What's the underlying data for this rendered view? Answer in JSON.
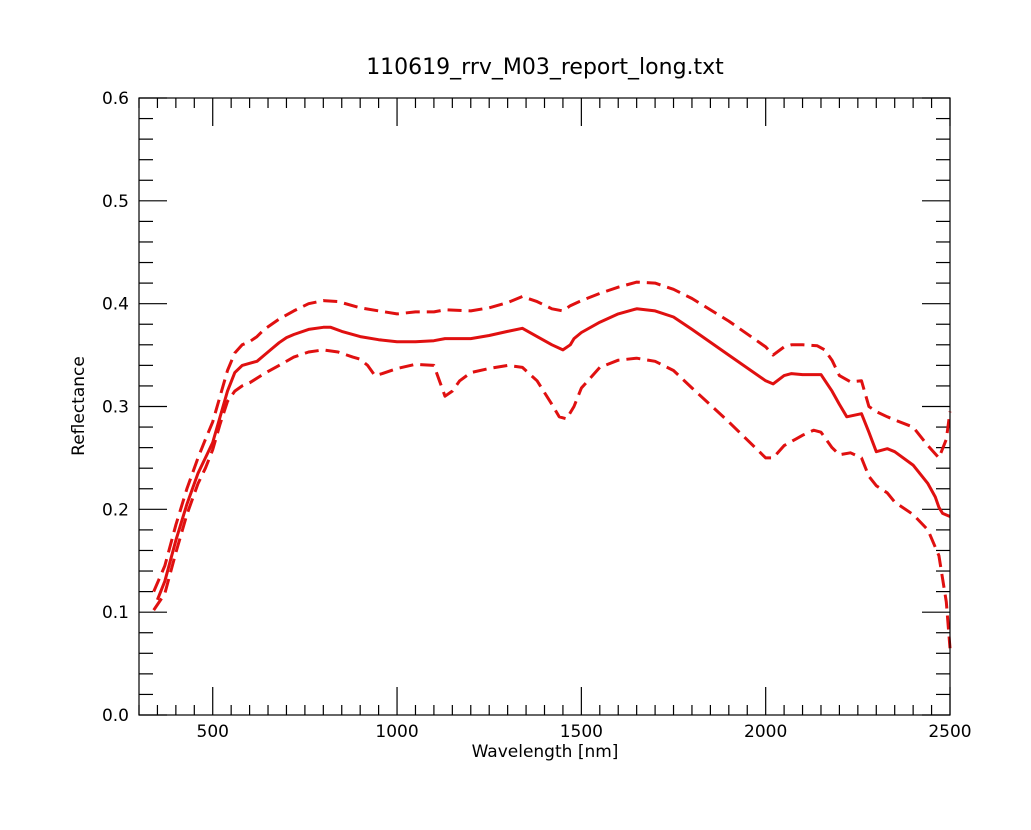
{
  "chart_data": {
    "type": "line",
    "title": "110619_rrv_M03_report_long.txt",
    "xlabel": "Wavelength [nm]",
    "ylabel": "Reflectance",
    "xlim": [
      300,
      2500
    ],
    "ylim": [
      0.0,
      0.6
    ],
    "xticks": [
      500,
      1000,
      1500,
      2000,
      2500
    ],
    "xtick_labels": [
      "500",
      "1000",
      "1500",
      "2000",
      "2500"
    ],
    "yticks": [
      0.0,
      0.1,
      0.2,
      0.3,
      0.4,
      0.5,
      0.6
    ],
    "ytick_labels": [
      "0.0",
      "0.1",
      "0.2",
      "0.3",
      "0.4",
      "0.5",
      "0.6"
    ],
    "grid": false,
    "legend": "none",
    "line_color": "#e01010",
    "series": [
      {
        "style": "solid",
        "x": [
          350,
          370,
          400,
          430,
          460,
          480,
          500,
          520,
          540,
          560,
          580,
          600,
          620,
          640,
          660,
          680,
          700,
          720,
          760,
          800,
          820,
          850,
          900,
          950,
          1000,
          1050,
          1100,
          1130,
          1200,
          1250,
          1300,
          1340,
          1380,
          1420,
          1450,
          1470,
          1480,
          1500,
          1550,
          1600,
          1650,
          1700,
          1750,
          1800,
          1900,
          2000,
          2020,
          2050,
          2070,
          2100,
          2150,
          2180,
          2200,
          2220,
          2260,
          2280,
          2300,
          2330,
          2350,
          2400,
          2440,
          2460,
          2470,
          2480,
          2500
        ],
        "values": [
          0.112,
          0.13,
          0.17,
          0.205,
          0.235,
          0.25,
          0.265,
          0.29,
          0.315,
          0.333,
          0.34,
          0.342,
          0.344,
          0.35,
          0.356,
          0.362,
          0.367,
          0.37,
          0.375,
          0.377,
          0.377,
          0.373,
          0.368,
          0.365,
          0.363,
          0.363,
          0.364,
          0.366,
          0.366,
          0.369,
          0.373,
          0.376,
          0.368,
          0.36,
          0.355,
          0.36,
          0.366,
          0.372,
          0.382,
          0.39,
          0.395,
          0.393,
          0.387,
          0.375,
          0.35,
          0.325,
          0.322,
          0.33,
          0.332,
          0.331,
          0.331,
          0.315,
          0.302,
          0.29,
          0.293,
          0.275,
          0.256,
          0.259,
          0.256,
          0.243,
          0.225,
          0.212,
          0.202,
          0.196,
          0.193
        ]
      },
      {
        "style": "dashed",
        "x": [
          340,
          370,
          400,
          430,
          460,
          480,
          500,
          520,
          540,
          560,
          580,
          600,
          620,
          640,
          680,
          720,
          760,
          800,
          840,
          900,
          950,
          1000,
          1050,
          1100,
          1130,
          1200,
          1250,
          1300,
          1340,
          1380,
          1420,
          1450,
          1470,
          1500,
          1550,
          1600,
          1650,
          1700,
          1750,
          1800,
          1900,
          2000,
          2020,
          2050,
          2070,
          2100,
          2140,
          2160,
          2180,
          2200,
          2230,
          2260,
          2280,
          2300,
          2330,
          2350,
          2400,
          2440,
          2470,
          2490,
          2500
        ],
        "values": [
          0.12,
          0.145,
          0.185,
          0.22,
          0.25,
          0.268,
          0.285,
          0.31,
          0.335,
          0.352,
          0.36,
          0.363,
          0.368,
          0.375,
          0.385,
          0.393,
          0.4,
          0.403,
          0.402,
          0.396,
          0.393,
          0.39,
          0.392,
          0.392,
          0.394,
          0.393,
          0.396,
          0.401,
          0.407,
          0.402,
          0.395,
          0.393,
          0.398,
          0.403,
          0.41,
          0.416,
          0.421,
          0.42,
          0.414,
          0.405,
          0.383,
          0.358,
          0.35,
          0.358,
          0.36,
          0.36,
          0.359,
          0.355,
          0.345,
          0.33,
          0.324,
          0.325,
          0.3,
          0.295,
          0.29,
          0.287,
          0.28,
          0.262,
          0.25,
          0.268,
          0.295
        ]
      },
      {
        "style": "dashed",
        "x": [
          340,
          370,
          400,
          430,
          460,
          480,
          500,
          520,
          540,
          560,
          580,
          600,
          640,
          680,
          720,
          760,
          800,
          840,
          880,
          900,
          920,
          940,
          960,
          1000,
          1050,
          1100,
          1130,
          1150,
          1170,
          1200,
          1250,
          1300,
          1340,
          1380,
          1420,
          1440,
          1460,
          1480,
          1500,
          1550,
          1600,
          1650,
          1700,
          1750,
          1800,
          1900,
          2000,
          2020,
          2050,
          2080,
          2100,
          2130,
          2150,
          2180,
          2200,
          2230,
          2260,
          2280,
          2300,
          2330,
          2350,
          2400,
          2440,
          2470,
          2490,
          2500
        ],
        "values": [
          0.102,
          0.118,
          0.158,
          0.195,
          0.225,
          0.24,
          0.258,
          0.283,
          0.305,
          0.315,
          0.32,
          0.323,
          0.332,
          0.34,
          0.348,
          0.353,
          0.355,
          0.353,
          0.348,
          0.346,
          0.34,
          0.33,
          0.332,
          0.337,
          0.341,
          0.34,
          0.31,
          0.315,
          0.325,
          0.333,
          0.337,
          0.34,
          0.338,
          0.325,
          0.302,
          0.29,
          0.288,
          0.3,
          0.318,
          0.338,
          0.345,
          0.347,
          0.344,
          0.335,
          0.318,
          0.285,
          0.25,
          0.25,
          0.262,
          0.268,
          0.272,
          0.277,
          0.275,
          0.26,
          0.253,
          0.255,
          0.25,
          0.232,
          0.223,
          0.216,
          0.207,
          0.195,
          0.18,
          0.155,
          0.11,
          0.065
        ]
      }
    ]
  }
}
